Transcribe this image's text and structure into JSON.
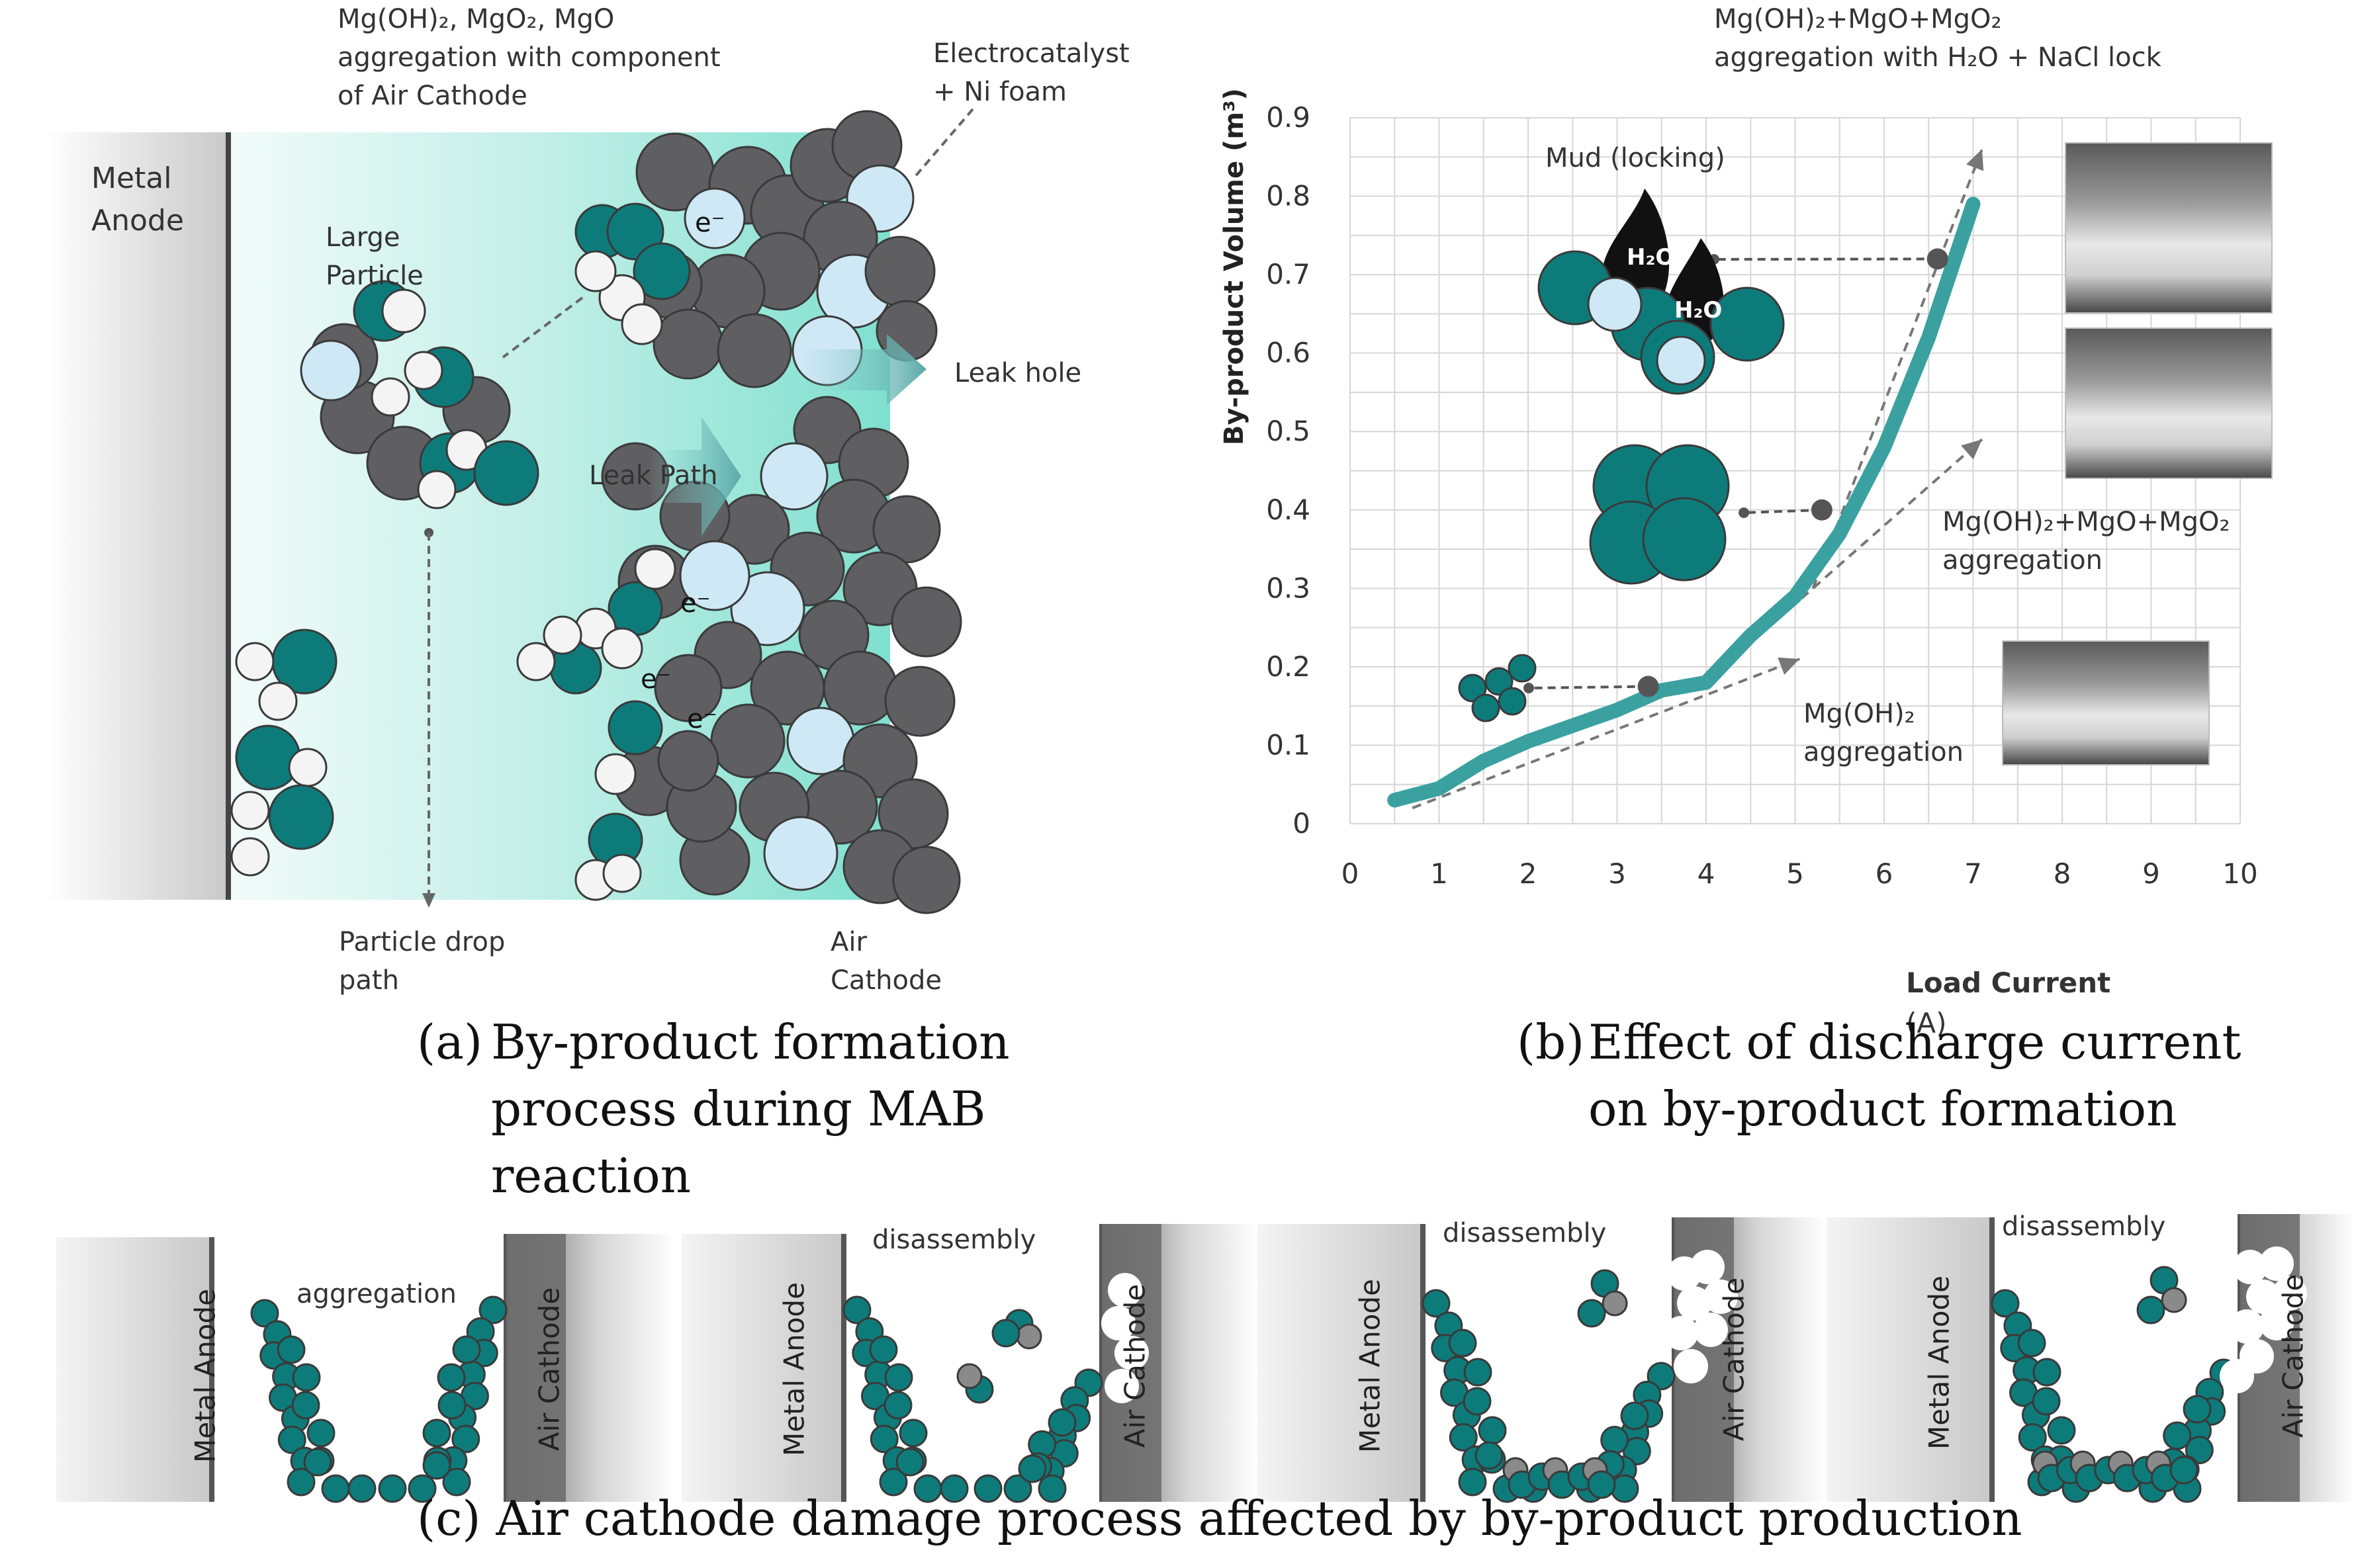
{
  "panel_a": {
    "label_aggregation": "Mg(OH)₂, MgO₂, MgO\naggregation with component\nof Air Cathode",
    "label_electrocatalyst": "Electrocatalyst\n+ Ni foam",
    "label_metal_anode": "Metal\nAnode",
    "label_large_particle": "Large\nParticle",
    "label_leak_hole": "Leak hole",
    "label_leak_path": "Leak Path",
    "label_particle_drop": "Particle drop\npath",
    "label_air_cathode": "Air\nCathode",
    "electron": "e⁻",
    "caption_letter": "(a)",
    "caption_text": "By-product formation process during MAB reaction"
  },
  "panel_b": {
    "top_annotation": "Mg(OH)₂+MgO+MgO₂\naggregation with H₂O + NaCl lock",
    "label_mud": "Mud (locking)",
    "label_h2o": "H₂O",
    "label_mid": "Mg(OH)₂+MgO+MgO₂\naggregation",
    "label_low": "Mg(OH)₂\naggregation",
    "caption_letter": "(b)",
    "caption_text": "Effect of discharge current on by-product formation"
  },
  "panel_c": {
    "metal_anode": "Metal Anode",
    "air_cathode": "Air Cathode",
    "aggregation": "aggregation",
    "disassembly": "disassembly",
    "caption": "(c) Air cathode damage process affected by by-product production"
  },
  "colors": {
    "teal": "#0e7b7b",
    "gray_particle": "#5f5f61",
    "light_blue": "#cfe8f6",
    "curve": "#3aa0a0",
    "grid": "#d6d6d6"
  },
  "chart_data": {
    "type": "line",
    "title": "",
    "xlabel": "Load Current",
    "xlabel_unit": "(A)",
    "ylabel": "By-product Volume  (m³)",
    "xlim": [
      0,
      10
    ],
    "ylim": [
      0,
      0.9
    ],
    "x_ticks": [
      "0",
      "1",
      "2",
      "3",
      "4",
      "5",
      "6",
      "7",
      "8",
      "9",
      "10"
    ],
    "y_ticks": [
      "0",
      "0.1",
      "0.2",
      "0.3",
      "0.4",
      "0.5",
      "0.6",
      "0.7",
      "0.8",
      "0.9"
    ],
    "grid": true,
    "series": [
      {
        "name": "By-product volume",
        "x": [
          0.5,
          1.0,
          1.5,
          2.0,
          2.5,
          3.0,
          3.5,
          4.0,
          4.5,
          5.0,
          5.5,
          6.0,
          6.5,
          7.0
        ],
        "y": [
          0.03,
          0.045,
          0.08,
          0.105,
          0.125,
          0.145,
          0.17,
          0.18,
          0.24,
          0.29,
          0.37,
          0.48,
          0.62,
          0.79
        ]
      }
    ],
    "markers": [
      {
        "x": 3.35,
        "y": 0.175
      },
      {
        "x": 5.3,
        "y": 0.4
      },
      {
        "x": 6.6,
        "y": 0.72
      }
    ],
    "trend_arrows": [
      {
        "x0": 0.7,
        "y0": 0.02,
        "x1": 5.05,
        "y1": 0.21
      },
      {
        "x0": 4.0,
        "y0": 0.18,
        "x1": 7.1,
        "y1": 0.49
      },
      {
        "x0": 5.2,
        "y0": 0.3,
        "x1": 7.1,
        "y1": 0.86
      }
    ]
  }
}
